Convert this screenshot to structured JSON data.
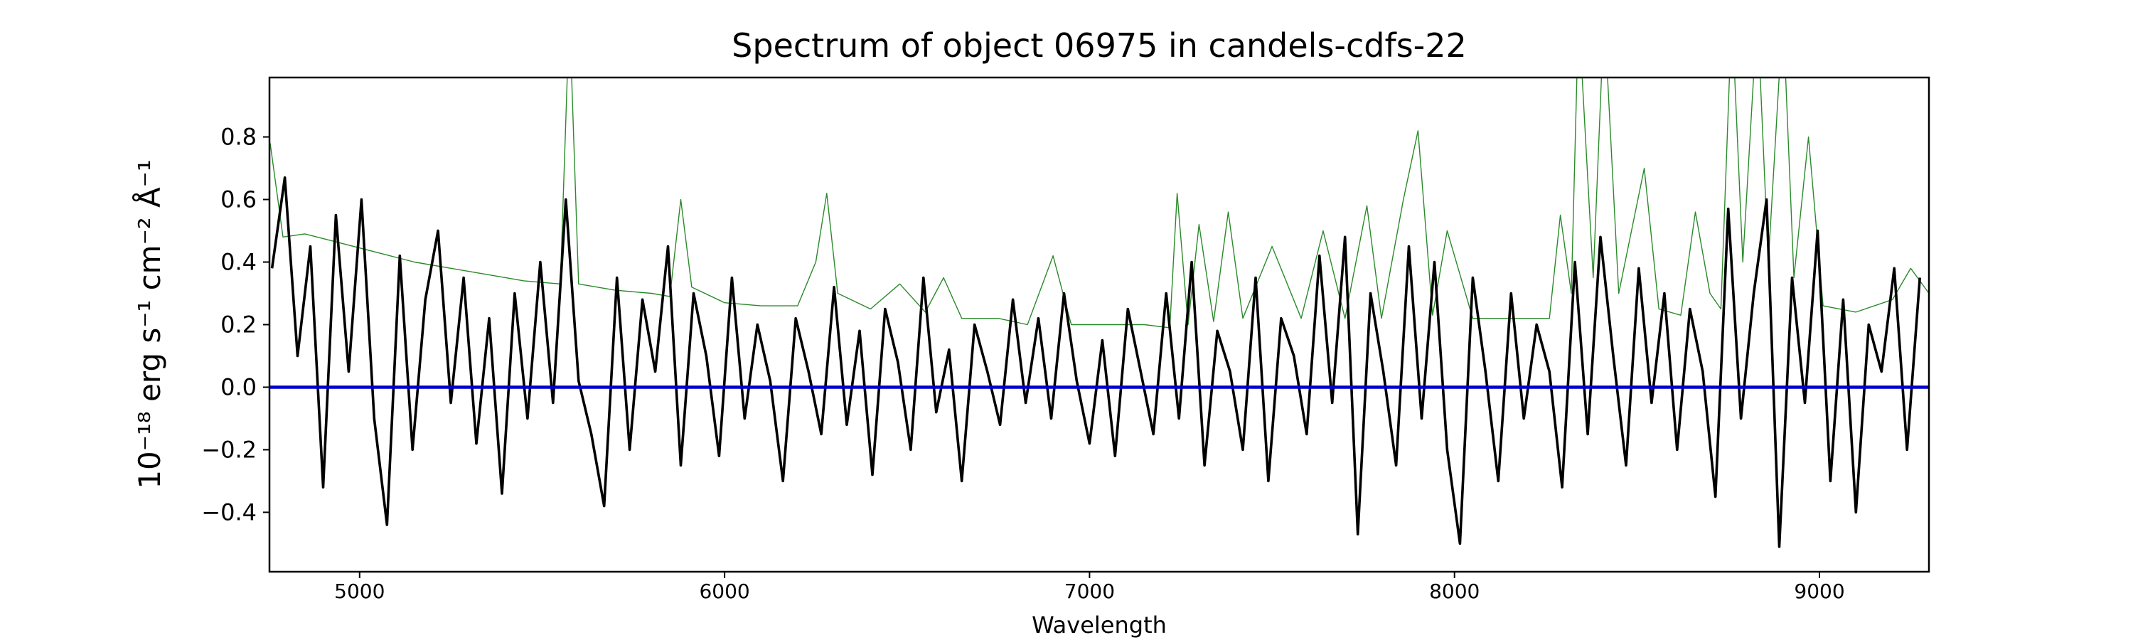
{
  "chart_data": {
    "type": "line",
    "title": "Spectrum of object 06975 in candels-cdfs-22",
    "xlabel": "Wavelength",
    "ylabel": "10⁻¹⁸ erg s⁻¹ cm⁻² Å⁻¹",
    "xlim": [
      4753,
      9300
    ],
    "ylim": [
      -0.59,
      0.99
    ],
    "xticks": [
      5000,
      6000,
      7000,
      8000,
      9000
    ],
    "yticks": [
      {
        "value": -0.4,
        "label": "−0.4"
      },
      {
        "value": -0.2,
        "label": "−0.2"
      },
      {
        "value": 0,
        "label": "0.0"
      },
      0.2,
      0.4,
      0.6,
      0.8
    ],
    "series": [
      {
        "color": "#2a8a2a",
        "x": [
          4755,
          4790,
          4850,
          4950,
          5050,
          5150,
          5250,
          5350,
          5450,
          5550,
          5575,
          5600,
          5700,
          5800,
          5850,
          5880,
          5910,
          6000,
          6100,
          6200,
          6250,
          6280,
          6310,
          6400,
          6480,
          6550,
          6600,
          6650,
          6750,
          6830,
          6900,
          6950,
          7050,
          7150,
          7220,
          7240,
          7270,
          7300,
          7340,
          7380,
          7420,
          7500,
          7580,
          7640,
          7700,
          7760,
          7800,
          7860,
          7900,
          7940,
          7980,
          8050,
          8150,
          8260,
          8290,
          8320,
          8340,
          8380,
          8410,
          8450,
          8520,
          8560,
          8620,
          8660,
          8700,
          8730,
          8760,
          8790,
          8830,
          8860,
          8900,
          8930,
          8970,
          9010,
          9100,
          9200,
          9250,
          9300
        ],
        "values": [
          0.78,
          0.48,
          0.49,
          0.46,
          0.43,
          0.4,
          0.38,
          0.36,
          0.34,
          0.33,
          1.2,
          0.33,
          0.31,
          0.3,
          0.29,
          0.6,
          0.32,
          0.27,
          0.26,
          0.26,
          0.4,
          0.62,
          0.3,
          0.25,
          0.33,
          0.24,
          0.35,
          0.22,
          0.22,
          0.2,
          0.42,
          0.2,
          0.2,
          0.2,
          0.19,
          0.62,
          0.2,
          0.52,
          0.21,
          0.56,
          0.22,
          0.45,
          0.22,
          0.5,
          0.22,
          0.58,
          0.22,
          0.6,
          0.82,
          0.23,
          0.5,
          0.22,
          0.22,
          0.22,
          0.55,
          0.3,
          1.2,
          0.35,
          1.2,
          0.3,
          0.7,
          0.25,
          0.23,
          0.56,
          0.3,
          0.25,
          1.2,
          0.4,
          1.2,
          0.4,
          1.2,
          0.35,
          0.8,
          0.26,
          0.24,
          0.28,
          0.38,
          0.3
        ],
        "width": 1.4
      },
      {
        "color": "#000000",
        "x": [
          4760,
          4795,
          4830,
          4865,
          4900,
          4935,
          4970,
          5005,
          5040,
          5075,
          5110,
          5145,
          5180,
          5215,
          5250,
          5285,
          5320,
          5355,
          5390,
          5425,
          5460,
          5495,
          5530,
          5565,
          5600,
          5635,
          5670,
          5705,
          5740,
          5775,
          5810,
          5845,
          5880,
          5915,
          5950,
          5985,
          6020,
          6055,
          6090,
          6125,
          6160,
          6195,
          6230,
          6265,
          6300,
          6335,
          6370,
          6405,
          6440,
          6475,
          6510,
          6545,
          6580,
          6615,
          6650,
          6685,
          6720,
          6755,
          6790,
          6825,
          6860,
          6895,
          6930,
          6965,
          7000,
          7035,
          7070,
          7105,
          7140,
          7175,
          7210,
          7245,
          7280,
          7315,
          7350,
          7385,
          7420,
          7455,
          7490,
          7525,
          7560,
          7595,
          7630,
          7665,
          7700,
          7735,
          7770,
          7805,
          7840,
          7875,
          7910,
          7945,
          7980,
          8015,
          8050,
          8085,
          8120,
          8155,
          8190,
          8225,
          8260,
          8295,
          8330,
          8365,
          8400,
          8435,
          8470,
          8505,
          8540,
          8575,
          8610,
          8645,
          8680,
          8715,
          8750,
          8785,
          8820,
          8855,
          8890,
          8925,
          8960,
          8995,
          9030,
          9065,
          9100,
          9135,
          9170,
          9205,
          9240,
          9275
        ],
        "values": [
          0.38,
          0.67,
          0.1,
          0.45,
          -0.32,
          0.55,
          0.05,
          0.6,
          -0.1,
          -0.44,
          0.42,
          -0.2,
          0.28,
          0.5,
          -0.05,
          0.35,
          -0.18,
          0.22,
          -0.34,
          0.3,
          -0.1,
          0.4,
          -0.05,
          0.6,
          0.02,
          -0.15,
          -0.38,
          0.35,
          -0.2,
          0.28,
          0.05,
          0.45,
          -0.25,
          0.3,
          0.1,
          -0.22,
          0.35,
          -0.1,
          0.2,
          0.02,
          -0.3,
          0.22,
          0.05,
          -0.15,
          0.32,
          -0.12,
          0.18,
          -0.28,
          0.25,
          0.08,
          -0.2,
          0.35,
          -0.08,
          0.12,
          -0.3,
          0.2,
          0.05,
          -0.12,
          0.28,
          -0.05,
          0.22,
          -0.1,
          0.3,
          0.02,
          -0.18,
          0.15,
          -0.22,
          0.25,
          0.05,
          -0.15,
          0.3,
          -0.1,
          0.4,
          -0.25,
          0.18,
          0.05,
          -0.2,
          0.35,
          -0.3,
          0.22,
          0.1,
          -0.15,
          0.42,
          -0.05,
          0.48,
          -0.47,
          0.3,
          0.05,
          -0.25,
          0.45,
          -0.1,
          0.4,
          -0.2,
          -0.5,
          0.35,
          0.05,
          -0.3,
          0.3,
          -0.1,
          0.2,
          0.05,
          -0.32,
          0.4,
          -0.15,
          0.48,
          0.1,
          -0.25,
          0.38,
          -0.05,
          0.3,
          -0.2,
          0.25,
          0.05,
          -0.35,
          0.57,
          -0.1,
          0.3,
          0.6,
          -0.51,
          0.35,
          -0.05,
          0.5,
          -0.3,
          0.28,
          -0.4,
          0.2,
          0.05,
          0.38,
          -0.2,
          0.35
        ],
        "width": 3.6
      },
      {
        "color": "#0000cc",
        "x": [
          4753,
          9300
        ],
        "values": [
          0,
          0
        ],
        "width": 4.5
      }
    ]
  }
}
